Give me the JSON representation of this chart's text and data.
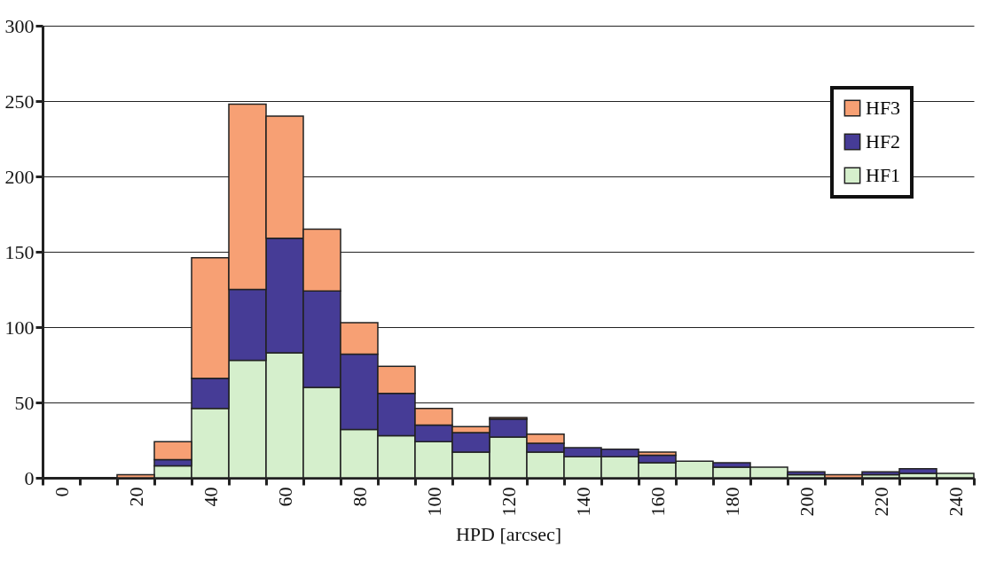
{
  "chart_data": {
    "type": "bar",
    "stacked": true,
    "xlabel": "HPD [arcsec]",
    "categories": [
      "0",
      null,
      "20",
      null,
      "40",
      null,
      "60",
      null,
      "80",
      null,
      "100",
      null,
      "120",
      null,
      "140",
      null,
      "160",
      null,
      "180",
      null,
      "200",
      null,
      "220",
      null,
      "240"
    ],
    "series": [
      {
        "name": "HF1",
        "color": "#d5efcc",
        "values": [
          0,
          0,
          0,
          8,
          46,
          78,
          83,
          60,
          32,
          28,
          24,
          17,
          27,
          17,
          14,
          14,
          10,
          11,
          7,
          7,
          2,
          0,
          2,
          3,
          3
        ]
      },
      {
        "name": "HF2",
        "color": "#463c96",
        "values": [
          0,
          0,
          0,
          4,
          20,
          47,
          76,
          64,
          50,
          28,
          11,
          13,
          12,
          6,
          6,
          5,
          5,
          0,
          3,
          0,
          2,
          0,
          2,
          3,
          0
        ]
      },
      {
        "name": "HF3",
        "color": "#f7a074",
        "values": [
          0,
          0,
          2,
          12,
          80,
          123,
          81,
          41,
          21,
          18,
          11,
          4,
          1,
          6,
          0,
          0,
          2,
          0,
          0,
          0,
          0,
          2,
          0,
          0,
          0
        ]
      }
    ],
    "ylim": [
      0,
      300
    ],
    "yticks": [
      0,
      50,
      100,
      150,
      200,
      250,
      300
    ],
    "grid": "y",
    "legend": "top right"
  }
}
